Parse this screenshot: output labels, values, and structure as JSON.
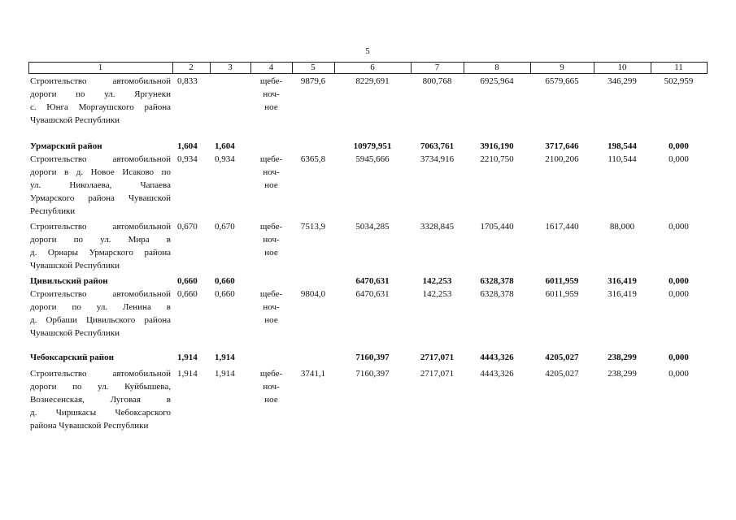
{
  "header": {
    "page_number": "5"
  },
  "table": {
    "header": [
      "1",
      "2",
      "3",
      "4",
      "5",
      "6",
      "7",
      "8",
      "9",
      "10",
      "11"
    ],
    "rows": [
      {
        "cells": {
          "1": [
            "Строительство автомобильной",
            "дороги по ул. Яргунеки",
            "с. Юнга Моргаушского района",
            "Чувашской Республики"
          ],
          "2": "0,833",
          "4": [
            "щебе-",
            "ноч-",
            "ное"
          ],
          "5": "9879,6",
          "6": "8229,691",
          "7": "800,768",
          "8": "6925,964",
          "9": "6579,665",
          "10": "346,299",
          "11": "502,959"
        }
      },
      {
        "bold": true,
        "cells": {
          "1": [
            "Урмарский район"
          ],
          "2": "1,604",
          "3": "1,604",
          "6": "10979,951",
          "7": "7063,761",
          "8": "3916,190",
          "9": "3717,646",
          "10": "198,544",
          "11": "0,000"
        }
      },
      {
        "cells": {
          "1": [
            "Строительство автомобильной",
            "дороги в д. Новое Исаково по",
            "ул. Николаева, Чапаева",
            "Урмарского района Чувашской",
            "Республики"
          ],
          "2": "0,934",
          "3": "0,934",
          "4": [
            "щебе-",
            "ноч-",
            "ное"
          ],
          "5": "6365,8",
          "6": "5945,666",
          "7": "3734,916",
          "8": "2210,750",
          "9": "2100,206",
          "10": "110,544",
          "11": "0,000"
        }
      },
      {
        "cells": {
          "1": [
            "Строительство автомобильной",
            "дороги по ул. Мира в",
            "д. Орнары Урмарского района",
            "Чувашской Республики"
          ],
          "2": "0,670",
          "3": "0,670",
          "4": [
            "щебе-",
            "ноч-",
            "ное"
          ],
          "5": "7513,9",
          "6": "5034,285",
          "7": "3328,845",
          "8": "1705,440",
          "9": "1617,440",
          "10": "88,000",
          "11": "0,000"
        }
      },
      {
        "bold": true,
        "cells": {
          "1": [
            "Цивильский район"
          ],
          "2": "0,660",
          "3": "0,660",
          "6": "6470,631",
          "7": "142,253",
          "8": "6328,378",
          "9": "6011,959",
          "10": "316,419",
          "11": "0,000"
        }
      },
      {
        "cells": {
          "1": [
            "Строительство автомобильной",
            "дороги по ул. Ленина в",
            "д. Орбаши Цивильского района",
            "Чувашской Республики"
          ],
          "2": "0,660",
          "3": "0,660",
          "4": [
            "щебе-",
            "ноч-",
            "ное"
          ],
          "5": "9804,0",
          "6": "6470,631",
          "7": "142,253",
          "8": "6328,378",
          "9": "6011,959",
          "10": "316,419",
          "11": "0,000"
        }
      },
      {
        "bold": true,
        "cells": {
          "1": [
            "Чебоксарский район"
          ],
          "2": "1,914",
          "3": "1,914",
          "6": "7160,397",
          "7": "2717,071",
          "8": "4443,326",
          "9": "4205,027",
          "10": "238,299",
          "11": "0,000"
        }
      },
      {
        "cells": {
          "1": [
            "Строительство автомобильной",
            "дороги по ул. Куйбышева,",
            "Вознесенская, Луговая в",
            "д. Чиршкасы Чебоксарского",
            "района Чувашской Республики"
          ],
          "2": "1,914",
          "3": "1,914",
          "4": [
            "щебе-",
            "ноч-",
            "ное"
          ],
          "5": "3741,1",
          "6": "7160,397",
          "7": "2717,071",
          "8": "4443,326",
          "9": "4205,027",
          "10": "238,299",
          "11": "0,000"
        }
      }
    ]
  }
}
